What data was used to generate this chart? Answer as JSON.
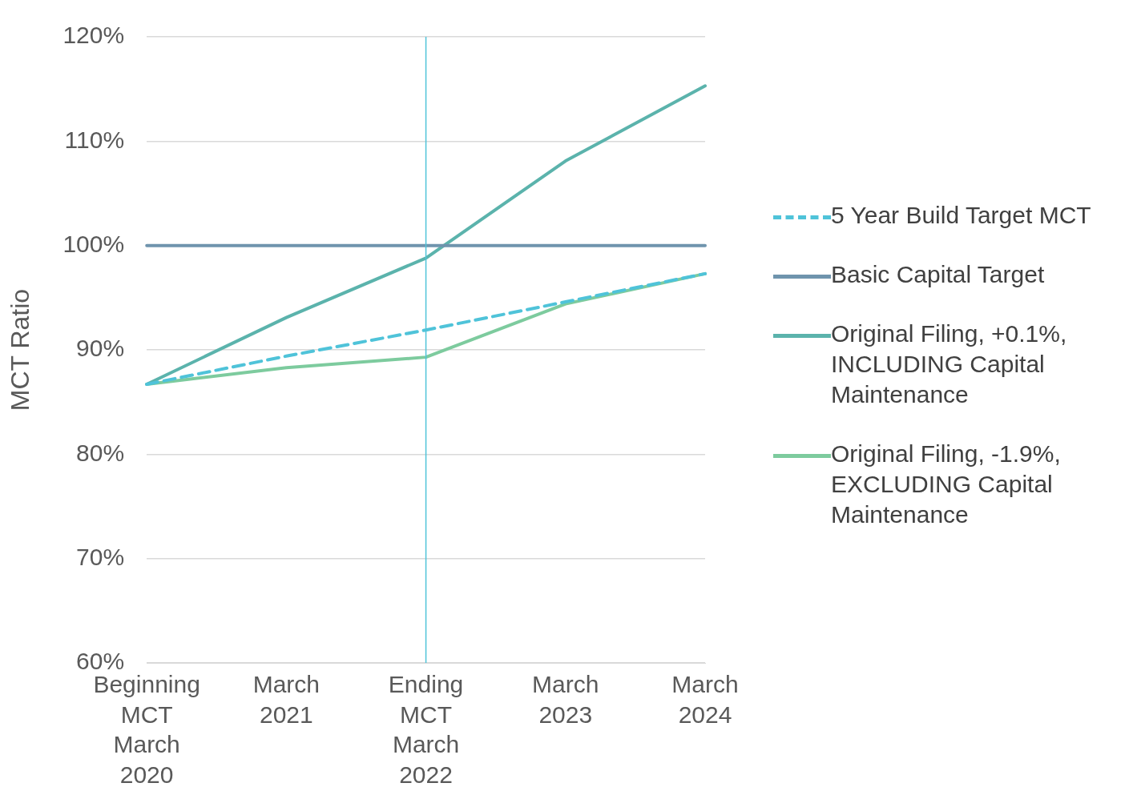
{
  "chart_data": {
    "type": "line",
    "ylabel": "MCT Ratio",
    "categories": [
      "Beginning MCT March 2020",
      "March 2021",
      "Ending MCT March 2022",
      "March 2023",
      "March 2024"
    ],
    "series": [
      {
        "name": "5 Year Build Target MCT",
        "color": "#4fc3d9",
        "line_style": "dashed",
        "values": [
          86.7,
          89.4,
          91.9,
          94.6,
          97.3
        ]
      },
      {
        "name": "Basic Capital Target",
        "color": "#6f94ad",
        "values": [
          100,
          100,
          100,
          100,
          100
        ]
      },
      {
        "name": "Original Filing, +0.1%, INCLUDING Capital Maintenance",
        "color": "#5bb3ac",
        "values": [
          86.7,
          93.1,
          98.8,
          108.1,
          115.3
        ]
      },
      {
        "name": "Original Filing, -1.9%, EXCLUDING Capital Maintenance",
        "color": "#7dcb9e",
        "values": [
          86.7,
          88.3,
          89.3,
          94.4,
          97.3
        ]
      }
    ],
    "ylim": [
      60,
      120
    ],
    "yticks": [
      {
        "value": 60,
        "label": "60%"
      },
      {
        "value": 70,
        "label": "70%"
      },
      {
        "value": 80,
        "label": "80%"
      },
      {
        "value": 90,
        "label": "90%"
      },
      {
        "value": 100,
        "label": "100%"
      },
      {
        "value": 110,
        "label": "110%"
      },
      {
        "value": 120,
        "label": "120%"
      }
    ],
    "ref_lines": [
      {
        "axis": "x",
        "value": "Ending MCT March 2022",
        "color": "#4fc3d9"
      }
    ],
    "grid": "y",
    "legend": "right",
    "marker": "none"
  }
}
